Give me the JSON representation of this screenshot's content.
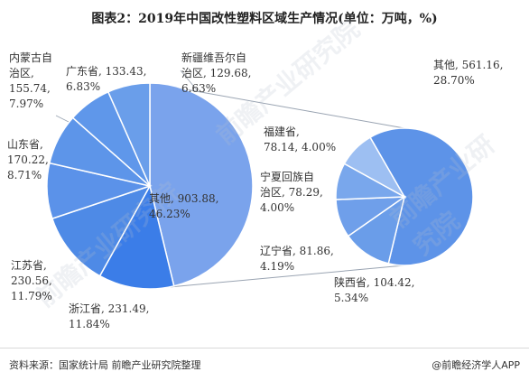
{
  "title": "图表2：2019年中国改性塑料区域生产情况(单位：万吨，%)",
  "chart_data": {
    "type": "pie",
    "unit": "万吨",
    "main_pie": {
      "slices": [
        {
          "name": "其他",
          "value": 903.88,
          "percent": "46.23%",
          "color": "#7aa3ec"
        },
        {
          "name": "浙江省",
          "value": 231.49,
          "percent": "11.84%",
          "color": "#3b7de8"
        },
        {
          "name": "江苏省",
          "value": 230.56,
          "percent": "11.79%",
          "color": "#4e8ae6"
        },
        {
          "name": "山东省",
          "value": 170.22,
          "percent": "8.71%",
          "color": "#5b92e9"
        },
        {
          "name": "内蒙古自治区",
          "value": 155.74,
          "percent": "7.97%",
          "color": "#5d95e9"
        },
        {
          "name": "广东省",
          "value": 133.43,
          "percent": "6.83%",
          "color": "#5f97ea"
        },
        {
          "name": "新疆维吾尔自治区",
          "value": 129.68,
          "percent": "6.63%",
          "color": "#6a9eea"
        }
      ]
    },
    "secondary_pie": {
      "slices": [
        {
          "name": "其他",
          "value": 561.16,
          "percent": "28.70%",
          "color": "#5d93e8"
        },
        {
          "name": "陕西省",
          "value": 104.42,
          "percent": "5.34%",
          "color": "#6a9de9"
        },
        {
          "name": "辽宁省",
          "value": 81.86,
          "percent": "4.19%",
          "color": "#6f9fea"
        },
        {
          "name": "宁夏回族自治区",
          "value": 78.29,
          "percent": "4.00%",
          "color": "#79a7ec"
        },
        {
          "name": "福建省",
          "value": 78.14,
          "percent": "4.00%",
          "color": "#9dbff2"
        }
      ]
    },
    "labels": {
      "main_other": "其他, 903.88,\n46.23%",
      "zhejiang": "浙江省, 231.49,\n11.84%",
      "jiangsu": "江苏省,\n230.56,\n11.79%",
      "shandong": "山东省,\n170.22,\n8.71%",
      "neimenggu": "内蒙古自\n治区,\n155.74,\n7.97%",
      "guangdong": "广东省, 133.43,\n6.83%",
      "xinjiang": "新疆维吾尔自\n治区, 129.68,\n6.63%",
      "sec_other": "其他, 561.16,\n28.70%",
      "fujian": "福建省,\n78.14, 4.00%",
      "ningxia": "宁夏回族自\n治区, 78.29,\n4.00%",
      "liaoning": "辽宁省, 81.86,\n4.19%",
      "shaanxi": "陕西省, 104.42,\n5.34%"
    }
  },
  "footer": {
    "source": "资料来源：国家统计局 前瞻产业研究院整理",
    "brand": "@前瞻经济学人APP"
  }
}
